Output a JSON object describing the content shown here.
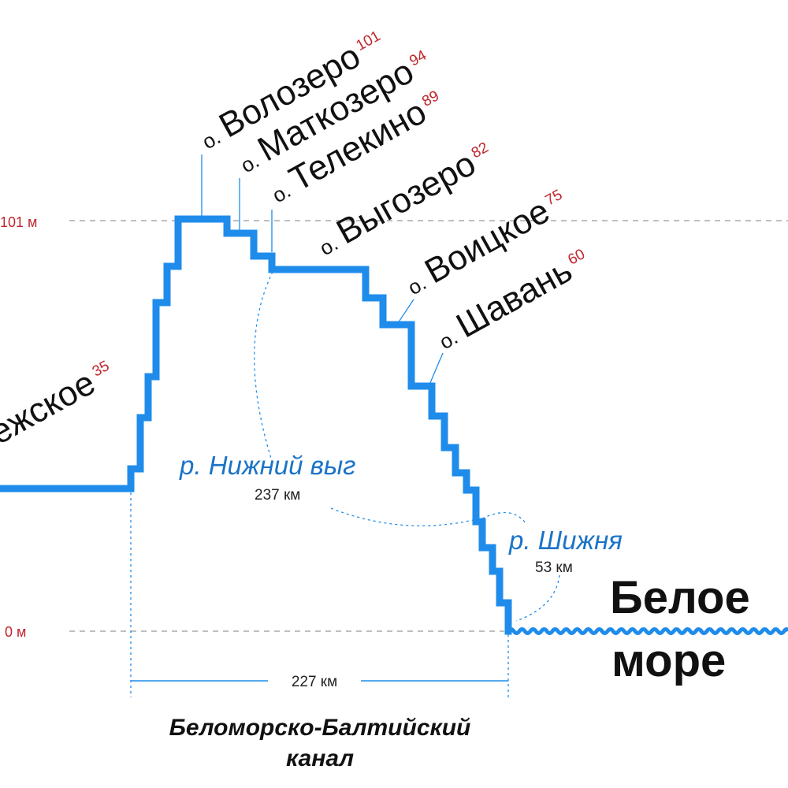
{
  "levels": {
    "top": "101 м",
    "bottom": "0 м"
  },
  "lakes": [
    {
      "prefix": "о.",
      "name": "Волозеро",
      "altitude": "101"
    },
    {
      "prefix": "о.",
      "name": "Маткозеро",
      "altitude": "94"
    },
    {
      "prefix": "о.",
      "name": "Телекино",
      "altitude": "89"
    },
    {
      "prefix": "о.",
      "name": "Выгозеро",
      "altitude": "82"
    },
    {
      "prefix": "о.",
      "name": "Воицкое",
      "altitude": "75"
    },
    {
      "prefix": "о.",
      "name": "Шавань",
      "altitude": "60"
    }
  ],
  "onega": {
    "name": "ежское",
    "altitude": "35"
  },
  "rivers": [
    {
      "name": "р. Нижний выг",
      "length": "237 км"
    },
    {
      "name": "р. Шижня",
      "length": "53 км"
    }
  ],
  "distance": "227 км",
  "sea": {
    "line1": "Белое",
    "line2": "море"
  },
  "canal": {
    "line1": "Беломорско-Балтийский",
    "line2": "канал"
  },
  "colors": {
    "profile": "#1f8ceb",
    "river_text": "#1a73c7",
    "altitude_text": "#c0262d",
    "guide": "#999999"
  }
}
